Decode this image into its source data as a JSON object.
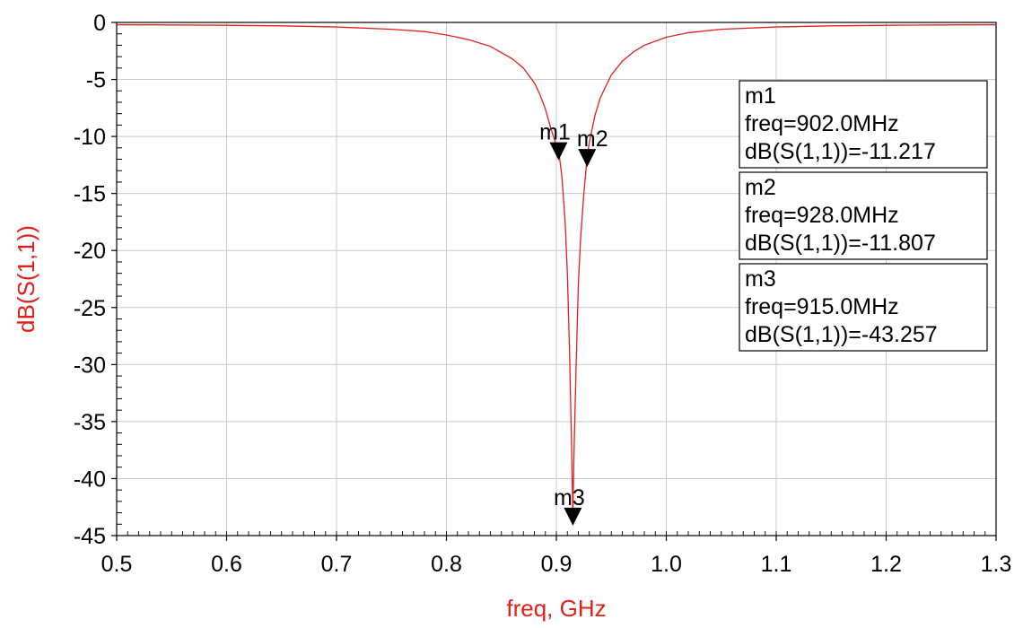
{
  "chart_data": {
    "type": "line",
    "xlabel": "freq, GHz",
    "ylabel": "dB(S(1,1))",
    "xlim": [
      0.5,
      1.3
    ],
    "ylim": [
      -45,
      0
    ],
    "x_ticks": [
      "0.5",
      "0.6",
      "0.7",
      "0.8",
      "0.9",
      "1.0",
      "1.1",
      "1.2",
      "1.3"
    ],
    "y_ticks": [
      "0",
      "-5",
      "-10",
      "-15",
      "-20",
      "-25",
      "-30",
      "-35",
      "-40",
      "-45"
    ],
    "grid": true,
    "colors": {
      "trace": "#e0201a",
      "axis_title": "#e0201a",
      "grid": "#c8c8c8"
    },
    "series": [
      {
        "x": [
          0.5,
          0.55,
          0.6,
          0.65,
          0.7,
          0.75,
          0.78,
          0.8,
          0.82,
          0.84,
          0.86,
          0.87,
          0.88,
          0.885,
          0.89,
          0.895,
          0.9,
          0.902,
          0.905,
          0.908,
          0.91,
          0.912,
          0.914,
          0.915,
          0.916,
          0.918,
          0.92,
          0.922,
          0.925,
          0.928,
          0.93,
          0.935,
          0.94,
          0.95,
          0.96,
          0.97,
          0.98,
          1.0,
          1.02,
          1.05,
          1.1,
          1.15,
          1.2,
          1.25,
          1.3
        ],
        "y": [
          -0.2,
          -0.22,
          -0.25,
          -0.3,
          -0.4,
          -0.6,
          -0.8,
          -1.1,
          -1.5,
          -2.1,
          -3.2,
          -4.0,
          -5.3,
          -6.3,
          -7.6,
          -9.3,
          -10.8,
          -11.2,
          -13.5,
          -17.5,
          -22.0,
          -29.0,
          -38.0,
          -43.3,
          -38.0,
          -30.0,
          -23.0,
          -19.0,
          -15.0,
          -11.8,
          -10.5,
          -8.2,
          -6.6,
          -4.6,
          -3.4,
          -2.6,
          -2.0,
          -1.3,
          -0.9,
          -0.6,
          -0.4,
          -0.3,
          -0.25,
          -0.22,
          -0.2
        ]
      }
    ],
    "markers": [
      {
        "label": "m1",
        "x": 0.902,
        "y": -11.217,
        "lines": [
          "m1",
          "freq=902.0MHz",
          "dB(S(1,1))=-11.217"
        ]
      },
      {
        "label": "m2",
        "x": 0.928,
        "y": -11.807,
        "lines": [
          "m2",
          "freq=928.0MHz",
          "dB(S(1,1))=-11.807"
        ]
      },
      {
        "label": "m3",
        "x": 0.915,
        "y": -43.257,
        "lines": [
          "m3",
          "freq=915.0MHz",
          "dB(S(1,1))=-43.257"
        ]
      }
    ]
  }
}
